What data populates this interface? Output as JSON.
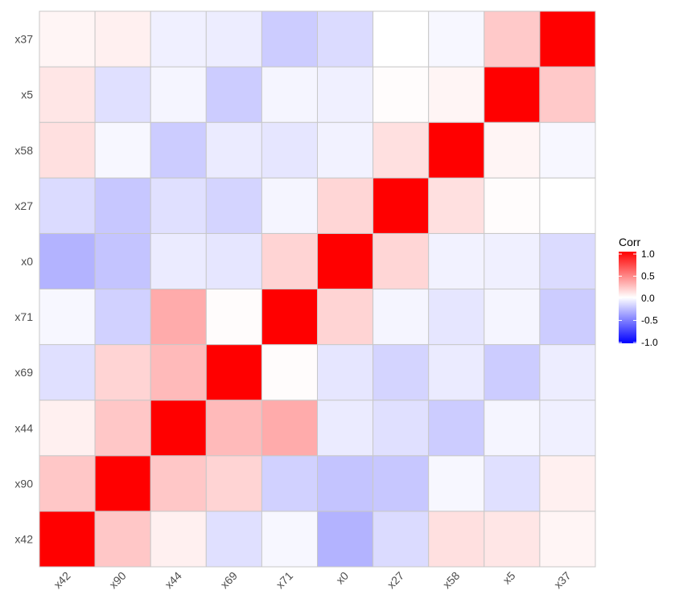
{
  "chart_data": {
    "type": "heatmap",
    "x_categories": [
      "x42",
      "x90",
      "x44",
      "x69",
      "x71",
      "x0",
      "x27",
      "x58",
      "x5",
      "x37"
    ],
    "y_categories": [
      "x42",
      "x90",
      "x44",
      "x69",
      "x71",
      "x0",
      "x27",
      "x58",
      "x5",
      "x37"
    ],
    "values": [
      [
        1.0,
        0.22,
        0.06,
        -0.12,
        -0.03,
        -0.3,
        -0.14,
        0.12,
        0.1,
        0.04
      ],
      [
        0.22,
        1.0,
        0.22,
        0.17,
        -0.18,
        -0.23,
        -0.22,
        -0.03,
        -0.12,
        0.06
      ],
      [
        0.06,
        0.22,
        1.0,
        0.27,
        0.33,
        -0.08,
        -0.12,
        -0.2,
        -0.04,
        -0.06
      ],
      [
        -0.12,
        0.17,
        0.27,
        1.0,
        0.01,
        -0.1,
        -0.17,
        -0.08,
        -0.2,
        -0.07
      ],
      [
        -0.03,
        -0.18,
        0.33,
        0.01,
        1.0,
        0.17,
        -0.04,
        -0.1,
        -0.04,
        -0.2
      ],
      [
        -0.3,
        -0.23,
        -0.08,
        -0.1,
        0.17,
        1.0,
        0.16,
        -0.05,
        -0.06,
        -0.14
      ],
      [
        -0.14,
        -0.22,
        -0.12,
        -0.17,
        -0.04,
        0.16,
        1.0,
        0.12,
        0.01,
        0.0
      ],
      [
        0.12,
        -0.03,
        -0.2,
        -0.08,
        -0.1,
        -0.05,
        0.12,
        1.0,
        0.04,
        -0.03
      ],
      [
        0.1,
        -0.12,
        -0.04,
        -0.2,
        -0.04,
        -0.06,
        0.01,
        0.04,
        1.0,
        0.21
      ],
      [
        0.04,
        0.06,
        -0.06,
        -0.07,
        -0.2,
        -0.14,
        0.0,
        -0.03,
        0.21,
        1.0
      ]
    ],
    "legend": {
      "title": "Corr",
      "ticks": [
        1.0,
        0.5,
        0.0,
        -0.5,
        -1.0
      ],
      "tick_labels": [
        "1.0",
        "0.5",
        "0.0",
        "-0.5",
        "-1.0"
      ],
      "range": [
        -1,
        1
      ],
      "placement": "right"
    },
    "colors": {
      "low": "#0000ff",
      "mid": "#ffffff",
      "high": "#ff0000",
      "border": "#c8c8c8"
    },
    "grid": false,
    "xlabel": "",
    "ylabel": ""
  }
}
